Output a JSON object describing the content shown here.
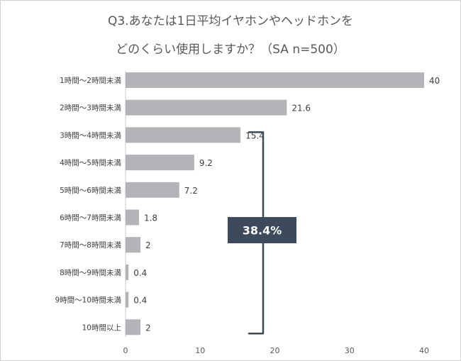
{
  "title_line1": "Q3.あなたは1日平均イヤホンやヘッドホンを",
  "title_line2": "どのくらい使用しますか？（SA n=500）",
  "callout": {
    "label": "38.4%",
    "bg_color": "#3d4a5c",
    "bracket_color": "#3d4a5c"
  },
  "chart_data": {
    "type": "bar",
    "orientation": "horizontal",
    "title": "Q3.あなたは1日平均イヤホンやヘッドホンをどのくらい使用しますか？（SA n=500）",
    "categories": [
      "1時間～2時間未満",
      "2時間～3時間未満",
      "3時間～4時間未満",
      "4時間～5時間未満",
      "5時間～6時間未満",
      "6時間～7時間未満",
      "7時間～8時間未満",
      "8時間～9時間未満",
      "9時間～10時間未満",
      "10時間以上"
    ],
    "values": [
      40,
      21.6,
      15.4,
      9.2,
      7.2,
      1.8,
      2,
      0.4,
      0.4,
      2
    ],
    "value_labels": [
      "40",
      "21.6",
      "15.4",
      "9.2",
      "7.2",
      "1.8",
      "2",
      "0.4",
      "0.4",
      "2"
    ],
    "x_ticks": [
      "0",
      "10",
      "20",
      "30",
      "40"
    ],
    "xlim": [
      0,
      40
    ],
    "grid": false,
    "legend": "none",
    "bar_color": "#b3b3b8"
  }
}
